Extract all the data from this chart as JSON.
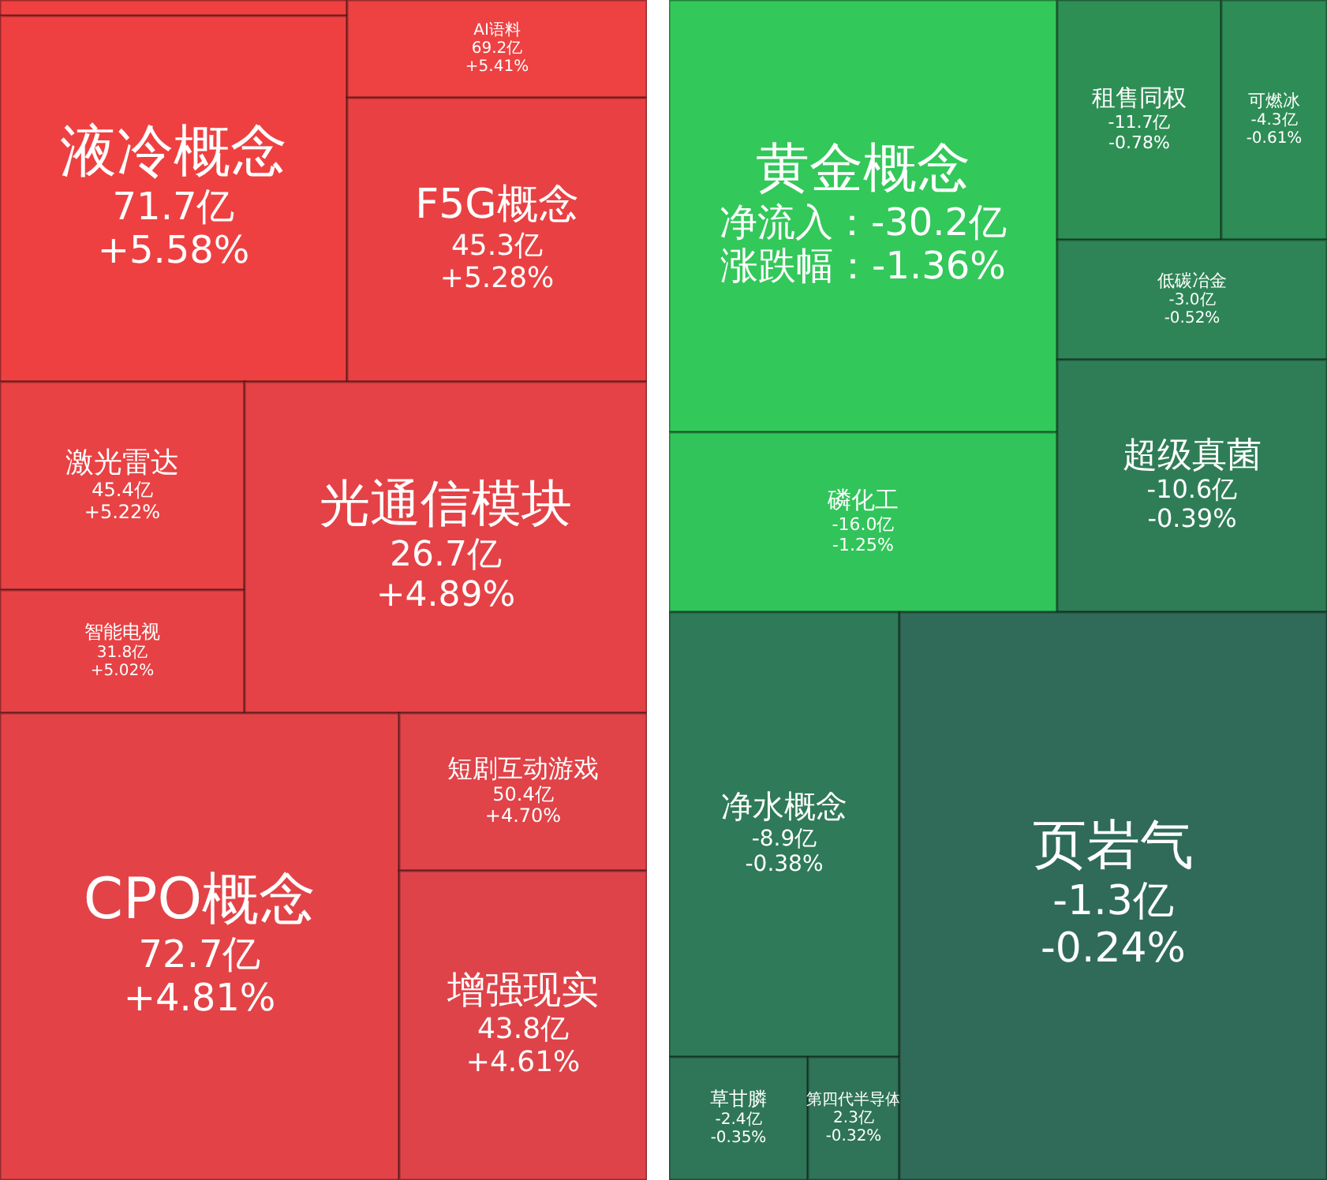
{
  "chart_data": [
    {
      "type": "other",
      "categories": [
        null,
        "液冷概念",
        "AI语料",
        "F5G概念",
        "激光雷达",
        "智能电视",
        "光通信模块",
        "CPO概念",
        "短剧互动游戏",
        "增强现实"
      ],
      "series": [
        {
          "colors": [
            "#f0403f",
            "#ef4041",
            "#ed4142",
            "#e94143",
            "#e84244",
            "#e64245",
            "#e44246",
            "#e34347",
            "#e04348",
            "#de4349"
          ],
          "values": [
            null,
            71.7,
            69.2,
            45.3,
            45.4,
            31.8,
            26.7,
            72.7,
            50.4,
            43.8
          ],
          "value_labels": [
            null,
            "71.7亿",
            "69.2亿",
            "45.3亿",
            "45.4亿",
            "31.8亿",
            "26.7亿",
            "72.7亿",
            "50.4亿",
            "43.8亿"
          ]
        },
        {
          "values": [
            null,
            5.58,
            5.41,
            5.28,
            5.22,
            5.02,
            4.89,
            4.81,
            4.7,
            4.61
          ],
          "value_labels": [
            null,
            "+5.58%",
            "+5.41%",
            "+5.28%",
            "+5.22%",
            "+5.02%",
            "+4.89%",
            "+4.81%",
            "+4.70%",
            "+4.61%"
          ]
        }
      ]
    },
    {
      "type": "other",
      "categories": [
        "黄金概念",
        "租售同权",
        "可燃冰",
        "低碳冶金",
        "磷化工",
        "超级真菌",
        "净水概念",
        "草甘膦",
        "第四代半导体",
        "页岩气"
      ],
      "series": [
        {
          "colors": [
            "#33c85a",
            "#2e8f55",
            "#2e8c56",
            "#2e8456",
            "#31c45a",
            "#2f7d57",
            "#2f7a58",
            "#2f7658",
            "#2f7358",
            "#2f6b58"
          ],
          "values": [
            -30.2,
            -11.7,
            -4.3,
            -3.0,
            -16.0,
            -10.6,
            -8.9,
            -2.4,
            2.3,
            -1.3
          ],
          "value_labels": [
            "净流入：-30.2亿",
            "-11.7亿",
            "-4.3亿",
            "-3.0亿",
            "-16.0亿",
            "-10.6亿",
            "-8.9亿",
            "-2.4亿",
            "2.3亿",
            "-1.3亿"
          ]
        },
        {
          "values": [
            -1.36,
            -0.78,
            -0.61,
            -0.52,
            -1.25,
            -0.39,
            -0.38,
            -0.35,
            -0.32,
            -0.24
          ],
          "value_labels": [
            "涨跌幅：-1.36%",
            "-0.78%",
            "-0.61%",
            "-0.52%",
            "-1.25%",
            "-0.39%",
            "-0.38%",
            "-0.35%",
            "-0.32%",
            "-0.24%"
          ]
        }
      ]
    }
  ]
}
